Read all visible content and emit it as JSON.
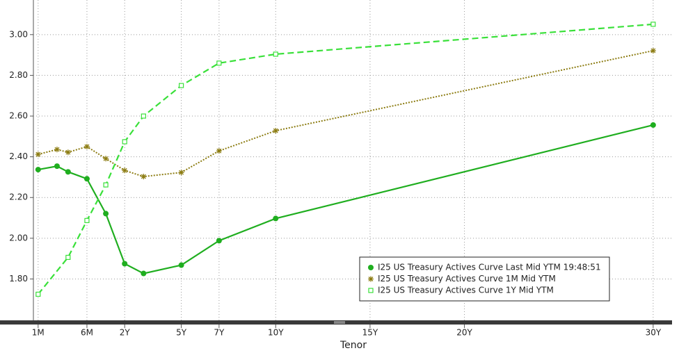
{
  "chart_data": {
    "type": "line",
    "x_label": "Tenor",
    "xlim": [
      0.07,
      31
    ],
    "ylim": [
      1.59,
      3.17
    ],
    "xticks": [
      {
        "value": 0.0833,
        "label": "1M"
      },
      {
        "value": 0.5,
        "label": "6M"
      },
      {
        "value": 2,
        "label": "2Y"
      },
      {
        "value": 5,
        "label": "5Y"
      },
      {
        "value": 7,
        "label": "7Y"
      },
      {
        "value": 10,
        "label": "10Y"
      },
      {
        "value": 15,
        "label": "15Y"
      },
      {
        "value": 20,
        "label": "20Y"
      },
      {
        "value": 30,
        "label": "30Y"
      }
    ],
    "yticks": [
      {
        "value": 1.8,
        "label": "1.80"
      },
      {
        "value": 2.0,
        "label": "2.00"
      },
      {
        "value": 2.2,
        "label": "2.20"
      },
      {
        "value": 2.4,
        "label": "2.40"
      },
      {
        "value": 2.6,
        "label": "2.60"
      },
      {
        "value": 2.8,
        "label": "2.80"
      },
      {
        "value": 3.0,
        "label": "3.00"
      }
    ],
    "grid": true,
    "legend": "lower right",
    "series": [
      {
        "name": "I25 US Treasury Actives Curve Last Mid YTM 19:48:51",
        "color": "#1fae1f",
        "marker": "circle",
        "dash": "solid",
        "x": [
          0.0833,
          0.1667,
          0.25,
          0.5,
          1,
          2,
          3,
          5,
          7,
          10,
          30
        ],
        "values": [
          2.337,
          2.354,
          2.326,
          2.292,
          2.121,
          1.875,
          1.827,
          1.868,
          1.988,
          2.097,
          2.556
        ]
      },
      {
        "name": "I25 US Treasury Actives Curve 1M Mid YTM",
        "color": "#8c7c12",
        "marker": "star",
        "dash": "dotted",
        "x": [
          0.0833,
          0.1667,
          0.25,
          0.5,
          1,
          2,
          3,
          5,
          7,
          10,
          30
        ],
        "values": [
          2.412,
          2.436,
          2.422,
          2.45,
          2.391,
          2.333,
          2.303,
          2.323,
          2.429,
          2.528,
          2.921
        ]
      },
      {
        "name": "I25 US Treasury Actives Curve 1Y Mid YTM",
        "color": "#39e039",
        "marker": "square",
        "dash": "dashed",
        "x": [
          0.0833,
          0.25,
          0.5,
          1,
          2,
          3,
          5,
          7,
          10,
          30
        ],
        "values": [
          1.725,
          1.906,
          2.087,
          2.262,
          2.474,
          2.6,
          2.75,
          2.86,
          2.904,
          3.051
        ]
      }
    ]
  }
}
